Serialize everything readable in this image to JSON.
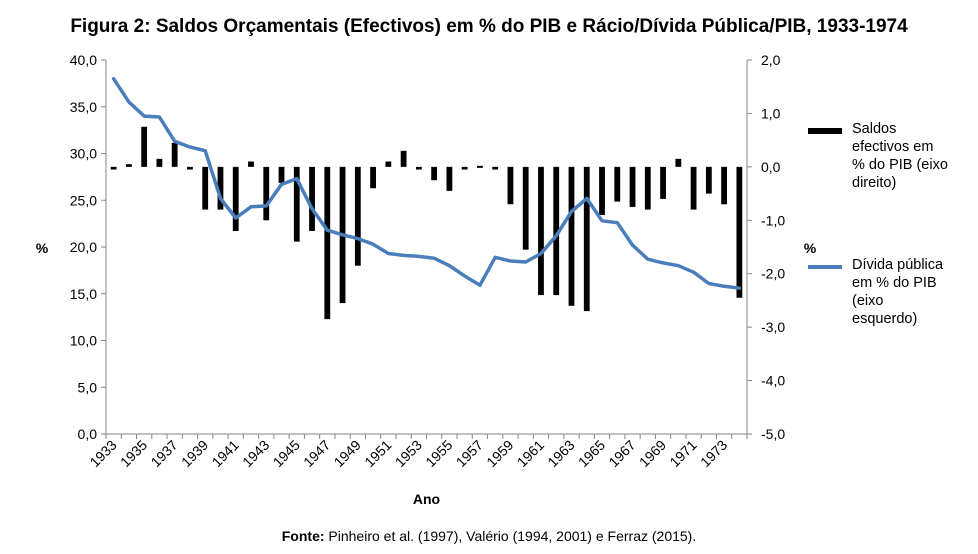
{
  "chart_data": {
    "type": "bar+line",
    "title": "Figura 2: Saldos Orçamentais (Efectivos) em % do PIB e Rácio/Dívida Pública/PIB, 1933-1974",
    "xlabel": "Ano",
    "ylabel_left": "%",
    "ylabel_right": "%",
    "years": [
      1933,
      1934,
      1935,
      1936,
      1937,
      1938,
      1939,
      1940,
      1941,
      1942,
      1943,
      1944,
      1945,
      1946,
      1947,
      1948,
      1949,
      1950,
      1951,
      1952,
      1953,
      1954,
      1955,
      1956,
      1957,
      1958,
      1959,
      1960,
      1961,
      1962,
      1963,
      1964,
      1965,
      1966,
      1967,
      1968,
      1969,
      1970,
      1971,
      1972,
      1973,
      1974
    ],
    "x_tick_labels": [
      "1933",
      "1935",
      "1937",
      "1939",
      "1941",
      "1943",
      "1945",
      "1947",
      "1949",
      "1951",
      "1953",
      "1955",
      "1957",
      "1959",
      "1961",
      "1963",
      "1965",
      "1967",
      "1969",
      "1971",
      "1973"
    ],
    "ylim_left": [
      0,
      40
    ],
    "yticks_left": [
      "0,0",
      "5,0",
      "10,0",
      "15,0",
      "20,0",
      "25,0",
      "30,0",
      "35,0",
      "40,0"
    ],
    "ylim_right": [
      -5,
      2
    ],
    "yticks_right": [
      "-5,0",
      "-4,0",
      "-3,0",
      "-2,0",
      "-1,0",
      "0,0",
      "1,0",
      "2,0"
    ],
    "series": [
      {
        "name": "Saldos efectivos em % do PIB (eixo direito)",
        "type": "bar",
        "axis": "right",
        "color": "#000000",
        "values": [
          -0.05,
          0.05,
          0.75,
          0.15,
          0.45,
          -0.05,
          -0.8,
          -0.8,
          -1.2,
          0.1,
          -1.0,
          -0.3,
          -1.4,
          -1.2,
          -2.85,
          -2.55,
          -1.85,
          -0.4,
          0.1,
          0.3,
          -0.05,
          -0.25,
          -0.45,
          -0.05,
          0.0,
          -0.05,
          -0.7,
          -1.55,
          -2.4,
          -2.4,
          -2.6,
          -2.7,
          -0.9,
          -0.65,
          -0.75,
          -0.8,
          -0.6,
          0.15,
          -0.8,
          -0.5,
          -0.7,
          -2.45
        ]
      },
      {
        "name": "Dívida pública em % do PIB (eixo esquerdo)",
        "type": "line",
        "axis": "left",
        "color": "#4a7ebb",
        "values": [
          38.0,
          35.5,
          34.0,
          33.9,
          31.3,
          30.7,
          30.3,
          25.2,
          23.1,
          24.3,
          24.4,
          26.7,
          27.3,
          24.1,
          21.8,
          21.3,
          20.9,
          20.3,
          19.3,
          19.1,
          19.0,
          18.8,
          18.0,
          16.9,
          15.9,
          18.9,
          18.5,
          18.4,
          19.3,
          21.2,
          23.8,
          25.2,
          22.8,
          22.6,
          20.2,
          18.7,
          18.3,
          18.0,
          17.3,
          16.1,
          15.8,
          15.6
        ]
      }
    ]
  },
  "legend": {
    "bars_label": "Saldos efectivos em % do PIB (eixo direito)",
    "line_label": "Dívida pública em % do PIB (eixo esquerdo)"
  },
  "source": {
    "prefix": "Fonte:",
    "text": "Pinheiro et al. (1997), Valério (1994, 2001) e Ferraz (2015)."
  }
}
